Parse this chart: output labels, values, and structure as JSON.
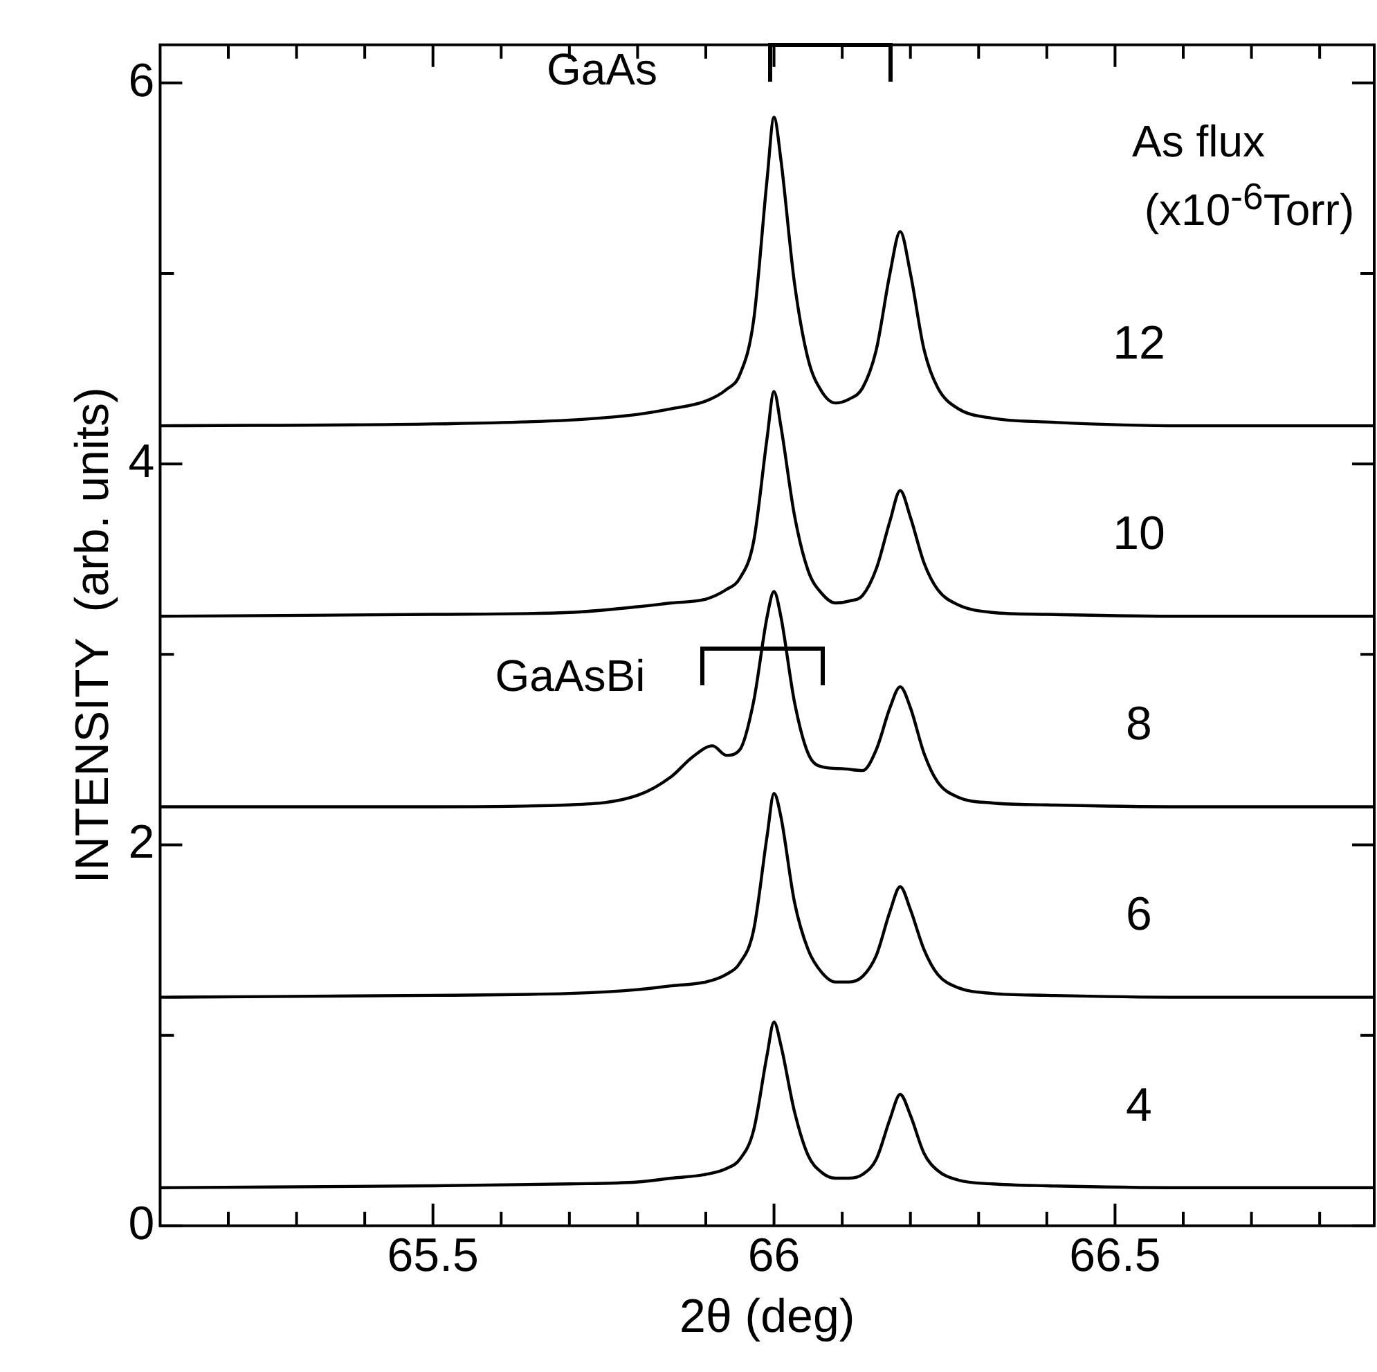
{
  "chart_data": {
    "type": "line",
    "xlabel": "2θ (deg)",
    "ylabel": "INTENSITY  (arb. units)",
    "legend_title": "As flux\n(x10$^{-6}$Torr)",
    "x": [
      65.1,
      65.5,
      65.7,
      65.8,
      65.85,
      65.9,
      65.93,
      65.95,
      65.97,
      65.99,
      66.0,
      66.01,
      66.03,
      66.05,
      66.07,
      66.09,
      66.11,
      66.13,
      66.15,
      66.17,
      66.185,
      66.2,
      66.22,
      66.24,
      66.27,
      66.32,
      66.4,
      66.6,
      66.88
    ],
    "series": [
      {
        "name": "12",
        "color": "#000000",
        "values": [
          4.2,
          4.21,
          4.23,
          4.26,
          4.29,
          4.33,
          4.39,
          4.47,
          4.75,
          5.5,
          5.82,
          5.6,
          4.95,
          4.55,
          4.38,
          4.32,
          4.34,
          4.4,
          4.6,
          5.0,
          5.22,
          5.0,
          4.6,
          4.4,
          4.29,
          4.24,
          4.22,
          4.2,
          4.2
        ]
      },
      {
        "name": "10",
        "color": "#000000",
        "values": [
          3.2,
          3.21,
          3.22,
          3.25,
          3.27,
          3.29,
          3.34,
          3.4,
          3.59,
          4.14,
          4.38,
          4.2,
          3.73,
          3.44,
          3.32,
          3.27,
          3.28,
          3.31,
          3.45,
          3.7,
          3.86,
          3.72,
          3.48,
          3.34,
          3.26,
          3.22,
          3.21,
          3.2,
          3.2
        ]
      },
      {
        "name": "8",
        "color": "#000000",
        "x": [
          65.1,
          65.5,
          65.7,
          65.8,
          65.85,
          65.88,
          65.91,
          65.93,
          65.95,
          65.97,
          65.99,
          66.0,
          66.01,
          66.03,
          66.05,
          66.07,
          66.1,
          66.13,
          66.15,
          66.17,
          66.185,
          66.2,
          66.22,
          66.24,
          66.27,
          66.32,
          66.4,
          66.6,
          66.88
        ],
        "values": [
          2.2,
          2.2,
          2.21,
          2.26,
          2.36,
          2.46,
          2.52,
          2.47,
          2.5,
          2.75,
          3.2,
          3.33,
          3.2,
          2.75,
          2.48,
          2.41,
          2.4,
          2.39,
          2.5,
          2.72,
          2.83,
          2.72,
          2.48,
          2.33,
          2.25,
          2.22,
          2.21,
          2.2,
          2.2
        ]
      },
      {
        "name": "6",
        "color": "#000000",
        "values": [
          1.2,
          1.21,
          1.22,
          1.24,
          1.26,
          1.28,
          1.32,
          1.38,
          1.55,
          2.05,
          2.27,
          2.15,
          1.7,
          1.45,
          1.33,
          1.28,
          1.28,
          1.31,
          1.42,
          1.65,
          1.78,
          1.66,
          1.45,
          1.32,
          1.25,
          1.22,
          1.21,
          1.2,
          1.2
        ]
      },
      {
        "name": "4",
        "color": "#000000",
        "values": [
          0.2,
          0.21,
          0.22,
          0.23,
          0.25,
          0.27,
          0.3,
          0.35,
          0.5,
          0.9,
          1.07,
          0.95,
          0.6,
          0.37,
          0.28,
          0.25,
          0.25,
          0.27,
          0.35,
          0.56,
          0.69,
          0.58,
          0.38,
          0.29,
          0.24,
          0.22,
          0.21,
          0.2,
          0.2
        ]
      }
    ],
    "xlim": [
      65.1,
      66.88
    ],
    "ylim": [
      0,
      6.2
    ],
    "xticks": [
      {
        "value": 65.2,
        "label": null
      },
      {
        "value": 65.3,
        "label": null
      },
      {
        "value": 65.4,
        "label": null
      },
      65.5,
      {
        "value": 65.6,
        "label": null
      },
      {
        "value": 65.7,
        "label": null
      },
      {
        "value": 65.8,
        "label": null
      },
      {
        "value": 65.9,
        "label": null
      },
      66,
      {
        "value": 66.1,
        "label": null
      },
      {
        "value": 66.2,
        "label": null
      },
      {
        "value": 66.3,
        "label": null
      },
      {
        "value": 66.4,
        "label": null
      },
      66.5,
      {
        "value": 66.6,
        "label": null
      },
      {
        "value": 66.7,
        "label": null
      },
      {
        "value": 66.8,
        "label": null
      }
    ],
    "yticks": [
      0,
      {
        "value": 1,
        "label": null
      },
      2,
      {
        "value": 3,
        "label": null
      },
      4,
      {
        "value": 5,
        "label": null
      },
      6
    ],
    "annotations": [
      "GaAs",
      "GaAsBi"
    ],
    "grid": false,
    "legend": false,
    "marker": "none",
    "line_style": "solid"
  }
}
